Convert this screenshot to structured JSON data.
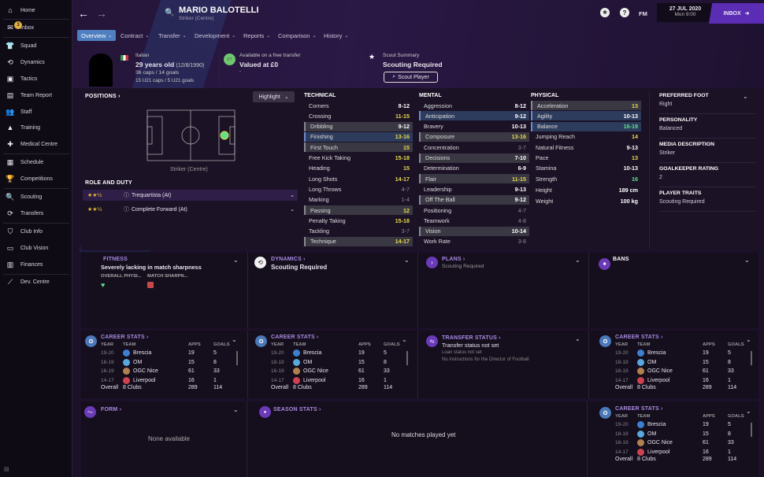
{
  "sidebar": {
    "items": [
      {
        "label": "Home",
        "icon": "home-icon",
        "glyph": "⌂"
      },
      {
        "label": "Inbox",
        "icon": "inbox-icon",
        "glyph": "✉",
        "badge": "3"
      },
      {
        "label": "Squad",
        "icon": "shirt-icon",
        "glyph": "👕"
      },
      {
        "label": "Dynamics",
        "icon": "dynamics-icon",
        "glyph": "⟲"
      },
      {
        "label": "Tactics",
        "icon": "tactics-icon",
        "glyph": "▣"
      },
      {
        "label": "Team Report",
        "icon": "clipboard-icon",
        "glyph": "▤"
      },
      {
        "label": "Staff",
        "icon": "staff-icon",
        "glyph": "👥"
      },
      {
        "label": "Training",
        "icon": "training-icon",
        "glyph": "▲"
      },
      {
        "label": "Medical Centre",
        "icon": "medical-icon",
        "glyph": "✚"
      },
      {
        "label": "Schedule",
        "icon": "calendar-icon",
        "glyph": "▦"
      },
      {
        "label": "Competitions",
        "icon": "trophy-icon",
        "glyph": "🏆"
      },
      {
        "label": "Scouting",
        "icon": "search-icon",
        "glyph": "🔍"
      },
      {
        "label": "Transfers",
        "icon": "transfers-icon",
        "glyph": "⟳"
      },
      {
        "label": "Club Info",
        "icon": "shield-icon",
        "glyph": "⛉"
      },
      {
        "label": "Club Vision",
        "icon": "briefcase-icon",
        "glyph": "▭"
      },
      {
        "label": "Finances",
        "icon": "money-icon",
        "glyph": "▥"
      },
      {
        "label": "Dev. Centre",
        "icon": "chart-icon",
        "glyph": "⟋"
      }
    ]
  },
  "header": {
    "name": "MARIO BALOTELLI",
    "position": "Striker (Centre)",
    "fm": "FM",
    "date": "27 JUL 2020",
    "time": "Mon 9:00",
    "inbox": "INBOX"
  },
  "tabs": [
    "Overview",
    "Contract",
    "Transfer",
    "Development",
    "Reports",
    "Comparison",
    "History"
  ],
  "info": {
    "nationality": "Italian",
    "age": "29 years old",
    "dob": "(12/8/1990)",
    "caps": "36 caps / 14 goals",
    "u21": "15 U21 caps / 5 U21 goals",
    "transfer_label": "Available on a free transfer",
    "value": "Valued at £0",
    "value_sub": "-",
    "scout_label": "Scout Summary",
    "scout_value": "Scouting Required",
    "scout_button": "Scout Player"
  },
  "positions": {
    "title": "POSITIONS",
    "highlight": "Highlight",
    "position_label": "Striker (Centre)",
    "role_title": "ROLE AND DUTY",
    "roles": [
      {
        "name": "Trequartista (At)",
        "stars": 2.5
      },
      {
        "name": "Complete Forward (At)",
        "stars": 2.5
      }
    ]
  },
  "attributes": {
    "technical": {
      "title": "TECHNICAL",
      "rows": [
        [
          "Corners",
          "8-12",
          "mid",
          ""
        ],
        [
          "Crossing",
          "11-15",
          "good",
          ""
        ],
        [
          "Dribbling",
          "9-12",
          "mid",
          "key"
        ],
        [
          "Finishing",
          "13-16",
          "good",
          "pri"
        ],
        [
          "First Touch",
          "15",
          "good",
          "key"
        ],
        [
          "Free Kick Taking",
          "15-18",
          "good",
          ""
        ],
        [
          "Heading",
          "15",
          "good",
          ""
        ],
        [
          "Long Shots",
          "14-17",
          "good",
          ""
        ],
        [
          "Long Throws",
          "4-7",
          "low",
          ""
        ],
        [
          "Marking",
          "1-4",
          "low",
          ""
        ],
        [
          "Passing",
          "12",
          "good",
          "key"
        ],
        [
          "Penalty Taking",
          "15-18",
          "good",
          ""
        ],
        [
          "Tackling",
          "3-7",
          "low",
          ""
        ],
        [
          "Technique",
          "14-17",
          "good",
          "key"
        ]
      ]
    },
    "mental": {
      "title": "MENTAL",
      "rows": [
        [
          "Aggression",
          "8-12",
          "mid",
          ""
        ],
        [
          "Anticipation",
          "9-12",
          "mid",
          "pri"
        ],
        [
          "Bravery",
          "10-13",
          "mid",
          ""
        ],
        [
          "Composure",
          "13-16",
          "good",
          "key"
        ],
        [
          "Concentration",
          "3-7",
          "low",
          ""
        ],
        [
          "Decisions",
          "7-10",
          "mid",
          "key"
        ],
        [
          "Determination",
          "6-9",
          "mid",
          ""
        ],
        [
          "Flair",
          "11-15",
          "good",
          "key"
        ],
        [
          "Leadership",
          "9-13",
          "mid",
          ""
        ],
        [
          "Off The Ball",
          "9-12",
          "mid",
          "key"
        ],
        [
          "Positioning",
          "4-7",
          "low",
          ""
        ],
        [
          "Teamwork",
          "4-8",
          "low",
          ""
        ],
        [
          "Vision",
          "10-14",
          "mid",
          "key"
        ],
        [
          "Work Rate",
          "3-8",
          "low",
          ""
        ]
      ]
    },
    "physical": {
      "title": "PHYSICAL",
      "rows": [
        [
          "Acceleration",
          "13",
          "good",
          "key"
        ],
        [
          "Agility",
          "10-13",
          "mid",
          "pri"
        ],
        [
          "Balance",
          "16-19",
          "great",
          "pri"
        ],
        [
          "Jumping Reach",
          "14",
          "good",
          ""
        ],
        [
          "Natural Fitness",
          "9-13",
          "mid",
          ""
        ],
        [
          "Pace",
          "13",
          "good",
          ""
        ],
        [
          "Stamina",
          "10-13",
          "mid",
          ""
        ],
        [
          "Strength",
          "16",
          "great",
          ""
        ]
      ],
      "height_label": "Height",
      "height": "189 cm",
      "weight_label": "Weight",
      "weight": "100 kg"
    }
  },
  "details": [
    {
      "label": "PREFERRED FOOT",
      "value": "Right"
    },
    {
      "label": "PERSONALITY",
      "value": "Balanced"
    },
    {
      "label": "MEDIA DESCRIPTION",
      "value": "Striker"
    },
    {
      "label": "GOALKEEPER RATING",
      "value": "2"
    },
    {
      "label": "PLAYER TRAITS",
      "value": "Scouting Required"
    }
  ],
  "fitness": {
    "title": "FITNESS",
    "status": "Severely lacking in match sharpness",
    "col1": "OVERALL PHYSI...",
    "col2": "MATCH SHARPN..."
  },
  "dynamics": {
    "title": "DYNAMICS",
    "value": "Scouting Required"
  },
  "plans": {
    "title": "PLANS",
    "value": "Scouting Required"
  },
  "bans": {
    "title": "BANS"
  },
  "transfer_status": {
    "title": "TRANSFER STATUS",
    "value": "Transfer status not set",
    "loan": "Loan status not set",
    "dof": "No instructions for the Director of Football"
  },
  "career": {
    "title": "CAREER STATS",
    "headers": [
      "YEAR",
      "TEAM",
      "APPS",
      "GOALS"
    ],
    "rows": [
      {
        "year": "19-20",
        "team": "Brescia",
        "apps": "19",
        "goals": "5",
        "color": "#3d7fd1"
      },
      {
        "year": "18-19",
        "team": "OM",
        "apps": "15",
        "goals": "8",
        "color": "#58a8e0"
      },
      {
        "year": "16-19",
        "team": "OGC Nice",
        "apps": "61",
        "goals": "33",
        "color": "#b08050"
      },
      {
        "year": "14-17",
        "team": "Liverpool",
        "apps": "16",
        "goals": "1",
        "color": "#d04050"
      }
    ],
    "overall": {
      "label": "Overall",
      "clubs": "8 Clubs",
      "apps": "289",
      "goals": "114"
    }
  },
  "form": {
    "title": "FORM",
    "empty": "None available"
  },
  "season": {
    "title": "SEASON STATS",
    "empty": "No matches played yet"
  },
  "colors": {
    "inbox": "#5b2db5",
    "tab_active": "#4f7fc0",
    "good": "#e4d94c",
    "great": "#5fe08a"
  }
}
